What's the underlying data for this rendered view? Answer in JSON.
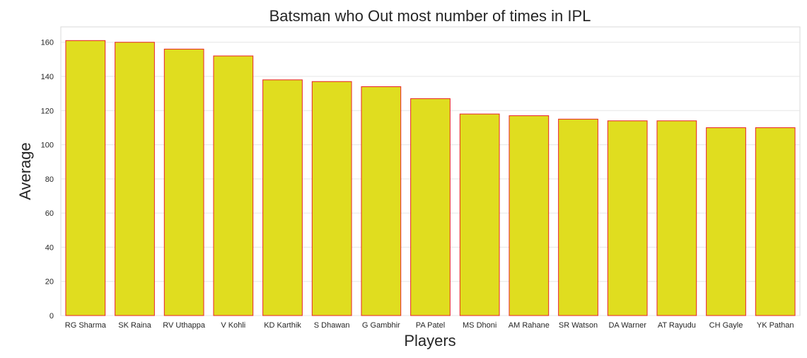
{
  "colors": {
    "bar_fill": "#e0dd1f",
    "bar_edge": "#e8232a",
    "grid": "#e6e6e6",
    "text": "#262626"
  },
  "chart_data": {
    "type": "bar",
    "title": "Batsman who Out most number of times in IPL",
    "xlabel": "Players",
    "ylabel": "Average",
    "categories": [
      "RG Sharma",
      "SK Raina",
      "RV Uthappa",
      "V Kohli",
      "KD Karthik",
      "S Dhawan",
      "G Gambhir",
      "PA Patel",
      "MS Dhoni",
      "AM Rahane",
      "SR Watson",
      "DA Warner",
      "AT Rayudu",
      "CH Gayle",
      "YK Pathan"
    ],
    "values": [
      161,
      160,
      156,
      152,
      138,
      137,
      134,
      127,
      118,
      117,
      115,
      114,
      114,
      110,
      110
    ],
    "ylim": [
      0,
      169
    ],
    "yticks": [
      0,
      20,
      40,
      60,
      80,
      100,
      120,
      140,
      160
    ],
    "grid": true
  }
}
